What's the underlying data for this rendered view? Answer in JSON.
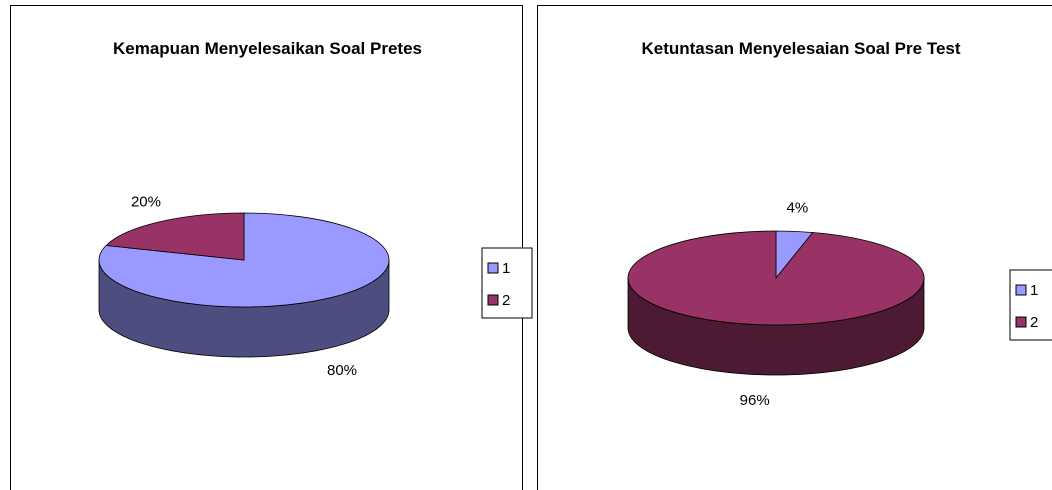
{
  "chart_data": [
    {
      "type": "pie3d",
      "title": "Kemapuan Menyelesaikan Soal Pretes",
      "categories": [
        "1",
        "2"
      ],
      "values": [
        80,
        20
      ],
      "value_labels": [
        "80%",
        "20%"
      ],
      "colors": [
        "#9999ff",
        "#993366"
      ],
      "legend": "right"
    },
    {
      "type": "pie3d",
      "title": "Ketuntasan Menyelesaian Soal Pre Test",
      "categories": [
        "1",
        "2"
      ],
      "values": [
        4,
        96
      ],
      "value_labels": [
        "4%",
        "96%"
      ],
      "colors": [
        "#9999ff",
        "#993366"
      ],
      "legend": "right"
    }
  ]
}
